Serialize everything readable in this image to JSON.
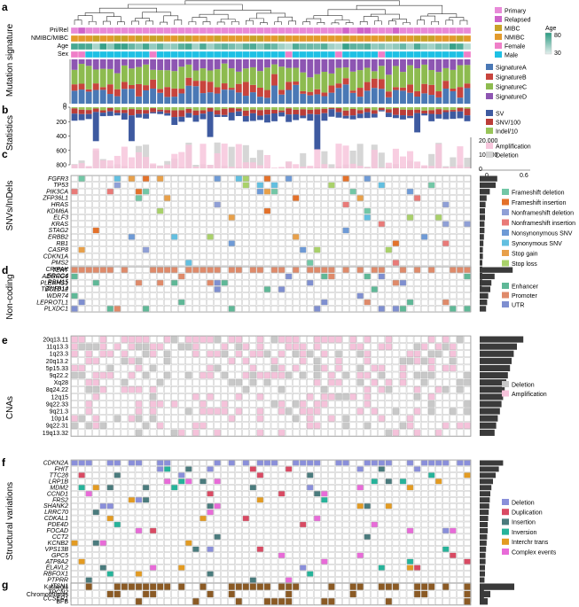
{
  "panel_letters": [
    "a",
    "b",
    "c",
    "d",
    "e",
    "f",
    "g"
  ],
  "panel_titles": {
    "a": "Mutation signature",
    "b": "Statistics",
    "c": "SNVs/InDels",
    "d": "Non-coding",
    "e": "CNAs",
    "f": "Structural variations"
  },
  "sample_count": 56,
  "annotation_tracks": [
    "Pri/Rel",
    "NMIBC/MIBC",
    "Age",
    "Sex"
  ],
  "legends": {
    "primary_relapsed": [
      {
        "label": "Primary",
        "color": "#e88ad8"
      },
      {
        "label": "Relapsed",
        "color": "#ce63c9"
      }
    ],
    "stage": [
      {
        "label": "MIBC",
        "color": "#c9a227"
      },
      {
        "label": "NMIBC",
        "color": "#e39a2c"
      }
    ],
    "sex": [
      {
        "label": "Female",
        "color": "#ef7fc8"
      },
      {
        "label": "Male",
        "color": "#1ec0e4"
      }
    ],
    "age": {
      "title": "Age",
      "max_label": "80",
      "min_label": "30",
      "low_color": "#e4efed",
      "high_color": "#2b9b82"
    },
    "signatures": [
      {
        "label": "SignatureA",
        "color": "#4a78b5"
      },
      {
        "label": "SignatureB",
        "color": "#c8443d"
      },
      {
        "label": "SignatureC",
        "color": "#8dbb4f"
      },
      {
        "label": "SignatureD",
        "color": "#8d55b2"
      }
    ],
    "statistics": [
      {
        "label": "SV",
        "color": "#3e5aa0"
      },
      {
        "label": "SNV/100",
        "color": "#bb3d38"
      },
      {
        "label": "Indel/10",
        "color": "#98c458"
      }
    ],
    "cna_stats": [
      {
        "label": "Amplification",
        "color": "#f7c6dc"
      },
      {
        "label": "Deletion",
        "color": "#d2d2d2"
      }
    ],
    "snv": [
      {
        "label": "Frameshift deletion",
        "color": "#72c7a6"
      },
      {
        "label": "Frameshift insertion",
        "color": "#e4712a"
      },
      {
        "label": "Nonframeshift deletion",
        "color": "#8f9fd6"
      },
      {
        "label": "Nonframeshift insertion",
        "color": "#e97a78"
      },
      {
        "label": "Nonsynonymous SNV",
        "color": "#6e9ad6"
      },
      {
        "label": "Synonymous SNV",
        "color": "#62bfe0"
      },
      {
        "label": "Stop gain",
        "color": "#e8a04a"
      },
      {
        "label": "Stop loss",
        "color": "#a9d16a"
      }
    ],
    "noncoding": [
      {
        "label": "Enhancer",
        "color": "#5fb897"
      },
      {
        "label": "Promoter",
        "color": "#df8a6a"
      },
      {
        "label": "UTR",
        "color": "#7f8fd0"
      }
    ],
    "cna": [
      {
        "label": "Deletion",
        "color": "#c8c8c8"
      },
      {
        "label": "Amplification",
        "color": "#f5c2da"
      }
    ],
    "sv": [
      {
        "label": "Deletion",
        "color": "#8a8fda"
      },
      {
        "label": "Duplication",
        "color": "#d94a63"
      },
      {
        "label": "Insertion",
        "color": "#4a7b7d"
      },
      {
        "label": "Inversion",
        "color": "#26b39a"
      },
      {
        "label": "Interchr trans",
        "color": "#e39b22"
      },
      {
        "label": "Complex events",
        "color": "#e86bd8"
      }
    ]
  },
  "stat_axis_labels": [
    "0",
    "200",
    "400",
    "600",
    "800"
  ],
  "cna_axis_labels": [
    "20,000",
    "10,000",
    "0"
  ],
  "freq_axis_labels": [
    "0",
    "0.6"
  ],
  "sig_axis_label": "0",
  "genes": {
    "c": [
      "FGFR3",
      "TP53",
      "PIK3CA",
      "ZFP36L1",
      "HRAS",
      "KDM6A",
      "ELF3",
      "KRAS",
      "STAG2",
      "ERBB2",
      "RB1",
      "CASP8",
      "CDKN1A",
      "PMS2",
      "CRIPAK",
      "ERCC4",
      "RBM15",
      "ZNF814"
    ],
    "d": [
      "TERT",
      "ADGRG6",
      "PLEKHS1",
      "TBC1D12",
      "WDR74",
      "LEPROTL1",
      "PLXDC1"
    ],
    "e": [
      "20q13.11",
      "11q13.3",
      "1q23.3",
      "20q13.2",
      "5p15.33",
      "9q22.2",
      "Xq28",
      "8q24.22",
      "12q15",
      "9q22.33",
      "9q21.3",
      "10p14",
      "9q22.31",
      "19q13.32"
    ],
    "f": [
      "CDKN2A",
      "FHIT",
      "TTC28",
      "LRP1B",
      "MDM2",
      "CCND1",
      "FRS2",
      "SHANK2",
      "LRRC70",
      "CDKAL1",
      "PDE4D",
      "FOCAD",
      "CCT2",
      "KCNB2",
      "VPS13B",
      "GPC5",
      "ATP8A2",
      "ELAVL2",
      "RBFOX1",
      "PTPRR",
      "ITSN1",
      "TPCN2",
      "CCSER1"
    ],
    "g": [
      "Kataegis",
      "Chromothripsis",
      "BFB"
    ]
  },
  "chart_data": {
    "type": "heatmap",
    "samples": 56,
    "freq": {
      "c": [
        0.33,
        0.3,
        0.19,
        0.13,
        0.11,
        0.1,
        0.1,
        0.09,
        0.09,
        0.08,
        0.07,
        0.06,
        0.06,
        0.05,
        0.05,
        0.05,
        0.05,
        0.04
      ],
      "d": [
        0.62,
        0.28,
        0.22,
        0.2,
        0.16,
        0.14,
        0.12
      ],
      "e": [
        0.82,
        0.7,
        0.64,
        0.6,
        0.57,
        0.53,
        0.5,
        0.47,
        0.44,
        0.41,
        0.38,
        0.34,
        0.31,
        0.28
      ],
      "f": [
        0.44,
        0.36,
        0.3,
        0.25,
        0.22,
        0.2,
        0.19,
        0.18,
        0.17,
        0.16,
        0.15,
        0.15,
        0.14,
        0.13,
        0.12,
        0.11,
        0.11,
        0.1,
        0.1,
        0.09,
        0.09,
        0.08,
        0.08
      ],
      "g": [
        0.65,
        0.2,
        0.15
      ]
    }
  }
}
